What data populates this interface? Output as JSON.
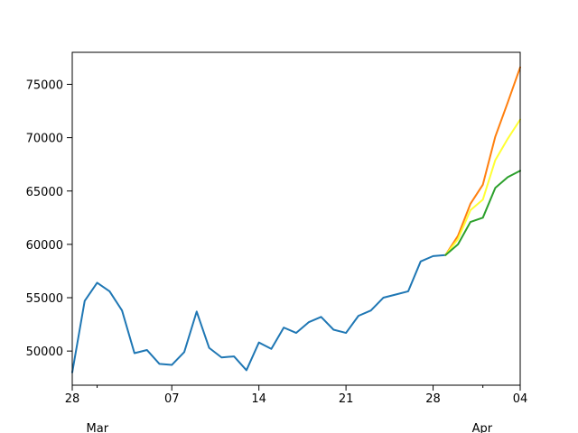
{
  "chart_data": {
    "type": "line",
    "title": "",
    "xlabel": "",
    "ylabel": "",
    "x_axis": {
      "type": "date",
      "range": [
        "2020-02-28",
        "2020-04-04"
      ],
      "ticks": [
        {
          "date": "2020-02-28",
          "label": "28"
        },
        {
          "date": "2020-03-07",
          "label": "07"
        },
        {
          "date": "2020-03-14",
          "label": "14"
        },
        {
          "date": "2020-03-21",
          "label": "21"
        },
        {
          "date": "2020-03-28",
          "label": "28"
        },
        {
          "date": "2020-04-04",
          "label": "04"
        }
      ],
      "minor_ticks": [
        "2020-03-01",
        "2020-04-01"
      ],
      "month_labels": [
        {
          "date": "2020-03-01",
          "label": "Mar"
        },
        {
          "date": "2020-04-01",
          "label": "Apr"
        }
      ]
    },
    "y_axis": {
      "range": [
        46800,
        78000
      ],
      "ticks": [
        {
          "value": 50000,
          "label": "50000"
        },
        {
          "value": 55000,
          "label": "55000"
        },
        {
          "value": 60000,
          "label": "60000"
        },
        {
          "value": 65000,
          "label": "65000"
        },
        {
          "value": 70000,
          "label": "70000"
        },
        {
          "value": 75000,
          "label": "75000"
        }
      ]
    },
    "grid": false,
    "legend": "none",
    "series": [
      {
        "color": "#1f77b4",
        "x": [
          "2020-02-28",
          "2020-02-29",
          "2020-03-01",
          "2020-03-02",
          "2020-03-03",
          "2020-03-04",
          "2020-03-05",
          "2020-03-06",
          "2020-03-07",
          "2020-03-08",
          "2020-03-09",
          "2020-03-10",
          "2020-03-11",
          "2020-03-12",
          "2020-03-13",
          "2020-03-14",
          "2020-03-15",
          "2020-03-16",
          "2020-03-17",
          "2020-03-18",
          "2020-03-19",
          "2020-03-20",
          "2020-03-21",
          "2020-03-22",
          "2020-03-23",
          "2020-03-24",
          "2020-03-25",
          "2020-03-26",
          "2020-03-27",
          "2020-03-28",
          "2020-03-29"
        ],
        "y": [
          48000,
          54700,
          56400,
          55600,
          53800,
          49800,
          50100,
          48800,
          48700,
          49900,
          53700,
          50300,
          49400,
          49500,
          48200,
          50800,
          50200,
          52200,
          51700,
          52700,
          53200,
          52000,
          51700,
          53300,
          53800,
          55000,
          55300,
          55600,
          58400,
          58900,
          59000
        ]
      },
      {
        "color": "#ff7f0e",
        "x": [
          "2020-03-29",
          "2020-03-30",
          "2020-03-31",
          "2020-04-01",
          "2020-04-02",
          "2020-04-03",
          "2020-04-04"
        ],
        "y": [
          59000,
          60800,
          63800,
          65600,
          70100,
          73300,
          76600
        ]
      },
      {
        "color": "#ffff33",
        "x": [
          "2020-03-29",
          "2020-03-30",
          "2020-03-31",
          "2020-04-01",
          "2020-04-02",
          "2020-04-03",
          "2020-04-04"
        ],
        "y": [
          59000,
          60500,
          63200,
          64200,
          67900,
          69900,
          71700
        ]
      },
      {
        "color": "#2ca02c",
        "x": [
          "2020-03-29",
          "2020-03-30",
          "2020-03-31",
          "2020-04-01",
          "2020-04-02",
          "2020-04-03",
          "2020-04-04"
        ],
        "y": [
          59000,
          60000,
          62100,
          62500,
          65300,
          66300,
          66900
        ]
      }
    ]
  }
}
